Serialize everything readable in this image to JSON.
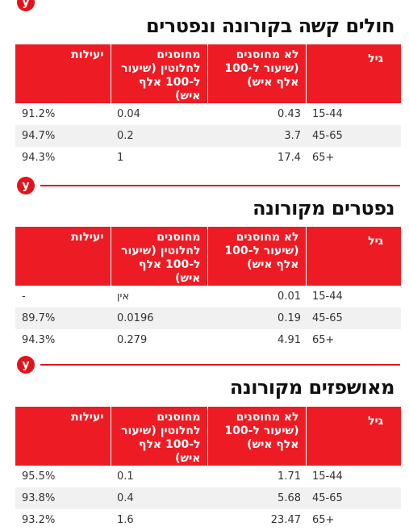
{
  "brand_logo_letter": "y",
  "headers": {
    "age": "גיל",
    "unvaccinated": "לא מחוסנים (שיעור ל-100 אלף איש)",
    "fully_vaccinated": "מחוסנים לחלוטין (שיעור ל-100 אלף איש)",
    "efficacy": "יעילות"
  },
  "tables": [
    {
      "title": "חולים קשה בקורונה ונפטרים",
      "rows": [
        {
          "age": "15-44",
          "unvaccinated": "0.43",
          "vaccinated": "0.04",
          "efficacy": "91.2%"
        },
        {
          "age": "45-65",
          "unvaccinated": "3.7",
          "vaccinated": "0.2",
          "efficacy": "94.7%"
        },
        {
          "age": "65+",
          "unvaccinated": "17.4",
          "vaccinated": "1",
          "efficacy": "94.3%"
        }
      ]
    },
    {
      "title": "נפטרים מקורונה",
      "rows": [
        {
          "age": "15-44",
          "unvaccinated": "0.01",
          "vaccinated": "אין",
          "efficacy": "-"
        },
        {
          "age": "45-65",
          "unvaccinated": "0.19",
          "vaccinated": "0.0196",
          "efficacy": "89.7%"
        },
        {
          "age": "65+",
          "unvaccinated": "4.91",
          "vaccinated": "0.279",
          "efficacy": "94.3%"
        }
      ]
    },
    {
      "title": "מאושפזים מקורונה",
      "rows": [
        {
          "age": "15-44",
          "unvaccinated": "1.71",
          "vaccinated": "0.1",
          "efficacy": "95.5%"
        },
        {
          "age": "45-65",
          "unvaccinated": "5.68",
          "vaccinated": "0.4",
          "efficacy": "93.8%"
        },
        {
          "age": "65+",
          "unvaccinated": "23.47",
          "vaccinated": "1.6",
          "efficacy": "93.2%"
        }
      ]
    }
  ],
  "colors": {
    "header_red": "#ed1c24",
    "logo_red": "#e3131b",
    "stripe": "#f1f1f1"
  }
}
